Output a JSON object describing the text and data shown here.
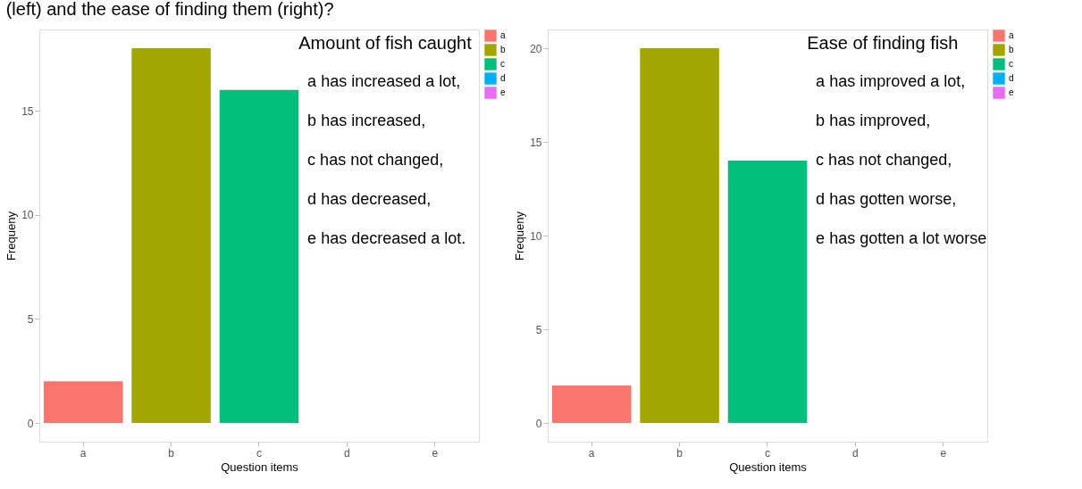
{
  "chart_data": [
    {
      "type": "bar",
      "title": "(left) and the ease of finding them (right)?",
      "categories": [
        "a",
        "b",
        "c",
        "d",
        "e"
      ],
      "xlabel": "Question items",
      "ylabel": "Frequeny",
      "ylim": [
        -0.9,
        18.9
      ],
      "yticks": [
        0,
        5,
        10,
        15
      ],
      "legend": "right",
      "grid": false,
      "series": [
        {
          "name": "a",
          "color": "#f8766d",
          "values": [
            2,
            null,
            null,
            null,
            null
          ]
        },
        {
          "name": "b",
          "color": "#a3a500",
          "values": [
            null,
            18,
            null,
            null,
            null
          ]
        },
        {
          "name": "c",
          "color": "#00bf7d",
          "values": [
            null,
            null,
            16,
            null,
            null
          ]
        },
        {
          "name": "d",
          "color": "#00b0f6",
          "values": [
            null,
            null,
            null,
            0,
            null
          ]
        },
        {
          "name": "e",
          "color": "#e76bf3",
          "values": [
            null,
            null,
            null,
            null,
            0
          ]
        }
      ],
      "annotations": [
        "Amount of fish caught",
        "a has increased a lot,",
        "b has increased,",
        "c has not changed,",
        "d has decreased,",
        "e has decreased a lot."
      ]
    },
    {
      "type": "bar",
      "categories": [
        "a",
        "b",
        "c",
        "d",
        "e"
      ],
      "xlabel": "Question items",
      "ylabel": "Frequeny",
      "ylim": [
        -1,
        21
      ],
      "yticks": [
        0,
        5,
        10,
        15,
        20
      ],
      "legend": "right",
      "grid": false,
      "series": [
        {
          "name": "a",
          "color": "#f8766d",
          "values": [
            2,
            null,
            null,
            null,
            null
          ]
        },
        {
          "name": "b",
          "color": "#a3a500",
          "values": [
            null,
            20,
            null,
            null,
            null
          ]
        },
        {
          "name": "c",
          "color": "#00bf7d",
          "values": [
            null,
            null,
            14,
            null,
            null
          ]
        },
        {
          "name": "d",
          "color": "#00b0f6",
          "values": [
            null,
            null,
            null,
            0,
            null
          ]
        },
        {
          "name": "e",
          "color": "#e76bf3",
          "values": [
            null,
            null,
            null,
            null,
            0
          ]
        }
      ],
      "annotations": [
        "Ease of finding fish",
        "a has improved a lot,",
        "b has improved,",
        "c has not changed,",
        "d has gotten worse,",
        "e has gotten a lot worse"
      ]
    }
  ]
}
